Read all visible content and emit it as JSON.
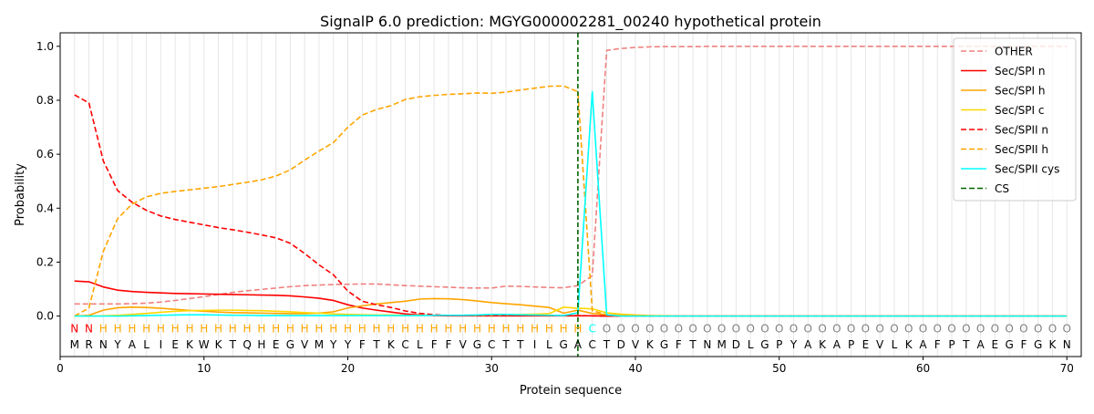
{
  "chart_data": {
    "type": "line",
    "title": "SignalP 6.0 prediction: MGYG000002281_00240 hypothetical protein",
    "xlabel": "Protein sequence",
    "ylabel": "Probability",
    "xlim": [
      0,
      71
    ],
    "ylim": [
      -0.15,
      1.05
    ],
    "xticks": [
      0,
      10,
      20,
      30,
      40,
      50,
      60,
      70
    ],
    "yticks": [
      0.0,
      0.2,
      0.4,
      0.6,
      0.8,
      1.0
    ],
    "grid": "vertical lines at each residue",
    "legend_position": "top-right",
    "sequence": [
      "M",
      "R",
      "N",
      "Y",
      "A",
      "L",
      "I",
      "E",
      "K",
      "W",
      "K",
      "T",
      "Q",
      "H",
      "E",
      "G",
      "V",
      "M",
      "Y",
      "Y",
      "F",
      "T",
      "K",
      "C",
      "L",
      "F",
      "F",
      "V",
      "G",
      "C",
      "T",
      "T",
      "I",
      "L",
      "G",
      "A",
      "C",
      "T",
      "D",
      "V",
      "K",
      "G",
      "F",
      "T",
      "N",
      "M",
      "D",
      "L",
      "G",
      "P",
      "Y",
      "A",
      "K",
      "A",
      "P",
      "E",
      "V",
      "L",
      "K",
      "A",
      "F",
      "P",
      "T",
      "A",
      "E",
      "G",
      "F",
      "G",
      "K",
      "N"
    ],
    "labels": [
      "N",
      "N",
      "H",
      "H",
      "H",
      "H",
      "H",
      "H",
      "H",
      "H",
      "H",
      "H",
      "H",
      "H",
      "H",
      "H",
      "H",
      "H",
      "H",
      "H",
      "H",
      "H",
      "H",
      "H",
      "H",
      "H",
      "H",
      "H",
      "H",
      "H",
      "H",
      "H",
      "H",
      "H",
      "H",
      "H",
      "C",
      "O",
      "O",
      "O",
      "O",
      "O",
      "O",
      "O",
      "O",
      "O",
      "O",
      "O",
      "O",
      "O",
      "O",
      "O",
      "O",
      "O",
      "O",
      "O",
      "O",
      "O",
      "O",
      "O",
      "O",
      "O",
      "O",
      "O",
      "O",
      "O",
      "O",
      "O",
      "O",
      "O"
    ],
    "label_colors": {
      "N": "#ff0000",
      "H": "#ffa500",
      "C": "#00ffff",
      "O": "#808080"
    },
    "cleavage_site": {
      "name": "CS",
      "x": 36,
      "color": "#006400"
    },
    "series": [
      {
        "name": "OTHER",
        "color": "#f08080",
        "dash": true,
        "values": [
          0.045,
          0.045,
          0.045,
          0.045,
          0.046,
          0.048,
          0.052,
          0.058,
          0.065,
          0.072,
          0.08,
          0.088,
          0.094,
          0.099,
          0.104,
          0.109,
          0.113,
          0.115,
          0.117,
          0.118,
          0.119,
          0.119,
          0.116,
          0.113,
          0.111,
          0.109,
          0.107,
          0.105,
          0.104,
          0.104,
          0.111,
          0.11,
          0.108,
          0.106,
          0.105,
          0.113,
          0.15,
          0.985,
          0.992,
          0.996,
          0.998,
          0.999,
          0.999,
          0.999,
          1.0,
          1.0,
          1.0,
          1.0,
          1.0,
          1.0,
          1.0,
          1.0,
          1.0,
          1.0,
          1.0,
          1.0,
          1.0,
          1.0,
          1.0,
          1.0,
          1.0,
          1.0,
          1.0,
          1.0,
          1.0,
          1.0,
          1.0,
          1.0,
          1.0,
          1.0
        ]
      },
      {
        "name": "Sec/SPI n",
        "color": "#ff0000",
        "dash": false,
        "values": [
          0.13,
          0.127,
          0.108,
          0.096,
          0.091,
          0.088,
          0.086,
          0.084,
          0.083,
          0.082,
          0.081,
          0.08,
          0.079,
          0.078,
          0.077,
          0.075,
          0.071,
          0.066,
          0.058,
          0.042,
          0.03,
          0.022,
          0.015,
          0.008,
          0.004,
          0.002,
          0.001,
          0.001,
          0.001,
          0.001,
          0.001,
          0.001,
          0.001,
          0.001,
          0.001,
          0.001,
          0.001,
          0.0,
          0.0,
          0.0,
          0.0,
          0.0,
          0.0,
          0.0,
          0.0,
          0.0,
          0.0,
          0.0,
          0.0,
          0.0,
          0.0,
          0.0,
          0.0,
          0.0,
          0.0,
          0.0,
          0.0,
          0.0,
          0.0,
          0.0,
          0.0,
          0.0,
          0.0,
          0.0,
          0.0,
          0.0,
          0.0,
          0.0,
          0.0,
          0.0
        ]
      },
      {
        "name": "Sec/SPI h",
        "color": "#ffa500",
        "dash": false,
        "values": [
          0.0,
          0.003,
          0.022,
          0.031,
          0.033,
          0.032,
          0.029,
          0.025,
          0.021,
          0.018,
          0.015,
          0.013,
          0.012,
          0.011,
          0.01,
          0.009,
          0.009,
          0.011,
          0.016,
          0.03,
          0.038,
          0.045,
          0.05,
          0.055,
          0.063,
          0.065,
          0.064,
          0.061,
          0.056,
          0.05,
          0.046,
          0.042,
          0.037,
          0.032,
          0.011,
          0.022,
          0.01,
          0.005,
          0.002,
          0.001,
          0.0,
          0.0,
          0.0,
          0.0,
          0.0,
          0.0,
          0.0,
          0.0,
          0.0,
          0.0,
          0.0,
          0.0,
          0.0,
          0.0,
          0.0,
          0.0,
          0.0,
          0.0,
          0.0,
          0.0,
          0.0,
          0.0,
          0.0,
          0.0,
          0.0,
          0.0,
          0.0,
          0.0,
          0.0,
          0.0
        ]
      },
      {
        "name": "Sec/SPI c",
        "color": "#ffd700",
        "dash": false,
        "values": [
          0.0,
          0.0,
          0.001,
          0.003,
          0.006,
          0.01,
          0.014,
          0.018,
          0.02,
          0.021,
          0.022,
          0.022,
          0.021,
          0.02,
          0.018,
          0.016,
          0.013,
          0.011,
          0.008,
          0.006,
          0.005,
          0.004,
          0.004,
          0.003,
          0.003,
          0.003,
          0.003,
          0.003,
          0.003,
          0.004,
          0.005,
          0.006,
          0.007,
          0.009,
          0.033,
          0.029,
          0.027,
          0.012,
          0.007,
          0.004,
          0.002,
          0.001,
          0.0,
          0.0,
          0.0,
          0.0,
          0.0,
          0.0,
          0.0,
          0.0,
          0.0,
          0.0,
          0.0,
          0.0,
          0.0,
          0.0,
          0.0,
          0.0,
          0.0,
          0.0,
          0.0,
          0.0,
          0.0,
          0.0,
          0.0,
          0.0,
          0.0,
          0.0,
          0.0,
          0.0
        ]
      },
      {
        "name": "Sec/SPII n",
        "color": "#ff0000",
        "dash": true,
        "values": [
          0.82,
          0.79,
          0.575,
          0.465,
          0.422,
          0.392,
          0.371,
          0.358,
          0.348,
          0.338,
          0.328,
          0.32,
          0.311,
          0.301,
          0.29,
          0.27,
          0.232,
          0.19,
          0.153,
          0.093,
          0.055,
          0.042,
          0.032,
          0.019,
          0.01,
          0.005,
          0.002,
          0.002,
          0.002,
          0.002,
          0.002,
          0.002,
          0.002,
          0.002,
          0.002,
          0.002,
          0.001,
          0.0,
          0.0,
          0.0,
          0.0,
          0.0,
          0.0,
          0.0,
          0.0,
          0.0,
          0.0,
          0.0,
          0.0,
          0.0,
          0.0,
          0.0,
          0.0,
          0.0,
          0.0,
          0.0,
          0.0,
          0.0,
          0.0,
          0.0,
          0.0,
          0.0,
          0.0,
          0.0,
          0.0,
          0.0,
          0.0,
          0.0,
          0.0,
          0.0
        ]
      },
      {
        "name": "Sec/SPII h",
        "color": "#ffa500",
        "dash": true,
        "values": [
          0.0,
          0.03,
          0.24,
          0.362,
          0.415,
          0.442,
          0.455,
          0.462,
          0.468,
          0.474,
          0.48,
          0.488,
          0.496,
          0.505,
          0.519,
          0.542,
          0.578,
          0.612,
          0.643,
          0.7,
          0.745,
          0.766,
          0.78,
          0.803,
          0.813,
          0.818,
          0.822,
          0.824,
          0.827,
          0.826,
          0.83,
          0.838,
          0.845,
          0.852,
          0.853,
          0.832,
          0.02,
          0.005,
          0.002,
          0.001,
          0.0,
          0.0,
          0.0,
          0.0,
          0.0,
          0.0,
          0.0,
          0.0,
          0.0,
          0.0,
          0.0,
          0.0,
          0.0,
          0.0,
          0.0,
          0.0,
          0.0,
          0.0,
          0.0,
          0.0,
          0.0,
          0.0,
          0.0,
          0.0,
          0.0,
          0.0,
          0.0,
          0.0,
          0.0,
          0.0
        ]
      },
      {
        "name": "Sec/SPII cys",
        "color": "#00ffff",
        "dash": false,
        "values": [
          0.0,
          0.0,
          0.0,
          0.0,
          0.001,
          0.002,
          0.003,
          0.004,
          0.005,
          0.005,
          0.004,
          0.003,
          0.003,
          0.002,
          0.002,
          0.002,
          0.002,
          0.002,
          0.002,
          0.002,
          0.002,
          0.002,
          0.002,
          0.002,
          0.002,
          0.003,
          0.003,
          0.003,
          0.004,
          0.006,
          0.006,
          0.005,
          0.004,
          0.003,
          0.002,
          0.012,
          0.832,
          0.005,
          0.0,
          0.0,
          0.0,
          0.0,
          0.0,
          0.0,
          0.0,
          0.0,
          0.0,
          0.0,
          0.0,
          0.0,
          0.0,
          0.0,
          0.0,
          0.0,
          0.0,
          0.0,
          0.0,
          0.0,
          0.0,
          0.0,
          0.0,
          0.0,
          0.0,
          0.0,
          0.0,
          0.0,
          0.0,
          0.0,
          0.0,
          0.0
        ]
      }
    ]
  }
}
